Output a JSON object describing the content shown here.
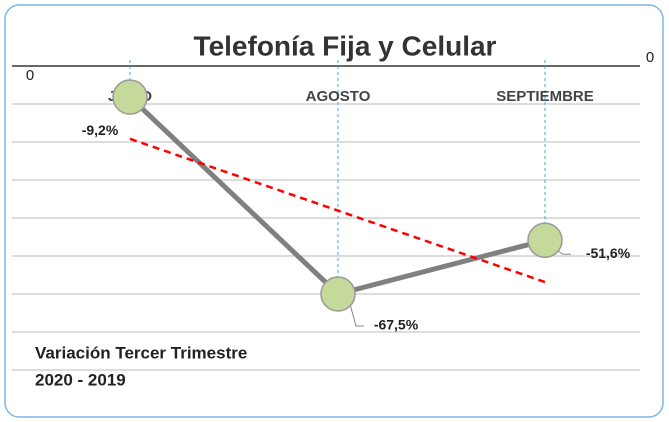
{
  "chart_data": {
    "type": "line",
    "title": "Telefonía Fija y Celular",
    "annotation": [
      "Variación Tercer Trimestre",
      "2020 - 2019"
    ],
    "categories": [
      "JULIO",
      "AGOSTO",
      "SEPTIEMBRE"
    ],
    "series": [
      {
        "color": "#808080",
        "marker_color": "#c5d99a",
        "values": [
          -9.2,
          -67.5,
          -51.6
        ],
        "value_labels": [
          "-9,2%",
          "-67,5%",
          "-51,6%"
        ]
      }
    ],
    "ylim": [
      -90,
      0
    ],
    "yticks": [
      0
    ],
    "y2lim": [
      -90,
      0
    ],
    "y2ticks": [
      0
    ],
    "minor_yticks": [
      -11.25,
      -22.5,
      -33.75,
      -45,
      -56.25,
      -67.5,
      -78.75,
      -90
    ],
    "grid": true,
    "trendline": {
      "type": "linear",
      "color": "#ff0000"
    }
  }
}
